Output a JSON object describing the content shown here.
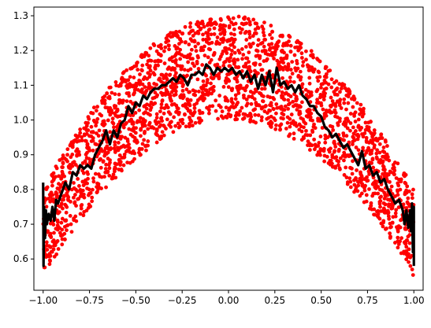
{
  "chart_data": {
    "type": "scatter",
    "title": "",
    "xlabel": "",
    "ylabel": "",
    "xlim": [
      -1.05,
      1.05
    ],
    "ylim": [
      0.51,
      1.325
    ],
    "grid": false,
    "x_ticks": [
      -1.0,
      -0.75,
      -0.5,
      -0.25,
      0.0,
      0.25,
      0.5,
      0.75,
      1.0
    ],
    "x_tick_labels": [
      "−1.00",
      "−0.75",
      "−0.50",
      "−0.25",
      "0.00",
      "0.25",
      "0.50",
      "0.75",
      "1.00"
    ],
    "y_ticks": [
      0.6,
      0.7,
      0.8,
      0.9,
      1.0,
      1.1,
      1.2,
      1.3
    ],
    "y_tick_labels": [
      "0.6",
      "0.7",
      "0.8",
      "0.9",
      "1.0",
      "1.1",
      "1.2",
      "1.3"
    ],
    "series": [
      {
        "kind": "scatter",
        "color": "#ff0000",
        "marker": "circle",
        "description_of_distribution": "noisy points between lower envelope 0.55+0.45*(1-x^2) and upper envelope 0.80+0.50*(1-x^2) over x in [-1,1]",
        "lower_curve": {
          "a": 0.55,
          "b": 0.45
        },
        "upper_curve": {
          "a": 0.8,
          "b": 0.5
        },
        "count": 2400
      },
      {
        "kind": "line",
        "color": "#000000",
        "points": [
          [
            -1.0,
            0.82
          ],
          [
            -0.998,
            0.58
          ],
          [
            -0.995,
            0.75
          ],
          [
            -0.99,
            0.66
          ],
          [
            -0.985,
            0.74
          ],
          [
            -0.98,
            0.7
          ],
          [
            -0.97,
            0.73
          ],
          [
            -0.96,
            0.71
          ],
          [
            -0.95,
            0.75
          ],
          [
            -0.94,
            0.71
          ],
          [
            -0.93,
            0.77
          ],
          [
            -0.92,
            0.76
          ],
          [
            -0.9,
            0.79
          ],
          [
            -0.88,
            0.82
          ],
          [
            -0.86,
            0.8
          ],
          [
            -0.84,
            0.85
          ],
          [
            -0.82,
            0.84
          ],
          [
            -0.8,
            0.87
          ],
          [
            -0.78,
            0.86
          ],
          [
            -0.76,
            0.87
          ],
          [
            -0.74,
            0.86
          ],
          [
            -0.72,
            0.9
          ],
          [
            -0.7,
            0.92
          ],
          [
            -0.68,
            0.94
          ],
          [
            -0.66,
            0.97
          ],
          [
            -0.64,
            0.93
          ],
          [
            -0.62,
            0.97
          ],
          [
            -0.6,
            0.95
          ],
          [
            -0.58,
            0.99
          ],
          [
            -0.56,
            1.0
          ],
          [
            -0.54,
            1.04
          ],
          [
            -0.52,
            1.02
          ],
          [
            -0.5,
            1.05
          ],
          [
            -0.48,
            1.04
          ],
          [
            -0.46,
            1.07
          ],
          [
            -0.44,
            1.06
          ],
          [
            -0.42,
            1.08
          ],
          [
            -0.4,
            1.09
          ],
          [
            -0.38,
            1.09
          ],
          [
            -0.36,
            1.1
          ],
          [
            -0.34,
            1.1
          ],
          [
            -0.32,
            1.11
          ],
          [
            -0.3,
            1.12
          ],
          [
            -0.28,
            1.11
          ],
          [
            -0.26,
            1.13
          ],
          [
            -0.24,
            1.12
          ],
          [
            -0.22,
            1.1
          ],
          [
            -0.2,
            1.13
          ],
          [
            -0.18,
            1.13
          ],
          [
            -0.16,
            1.14
          ],
          [
            -0.14,
            1.13
          ],
          [
            -0.12,
            1.16
          ],
          [
            -0.1,
            1.15
          ],
          [
            -0.08,
            1.13
          ],
          [
            -0.06,
            1.15
          ],
          [
            -0.04,
            1.14
          ],
          [
            -0.02,
            1.15
          ],
          [
            0.0,
            1.14
          ],
          [
            0.02,
            1.15
          ],
          [
            0.04,
            1.13
          ],
          [
            0.06,
            1.14
          ],
          [
            0.08,
            1.12
          ],
          [
            0.1,
            1.14
          ],
          [
            0.12,
            1.11
          ],
          [
            0.14,
            1.13
          ],
          [
            0.16,
            1.09
          ],
          [
            0.18,
            1.13
          ],
          [
            0.2,
            1.1
          ],
          [
            0.22,
            1.14
          ],
          [
            0.24,
            1.08
          ],
          [
            0.26,
            1.15
          ],
          [
            0.28,
            1.1
          ],
          [
            0.3,
            1.11
          ],
          [
            0.32,
            1.09
          ],
          [
            0.34,
            1.1
          ],
          [
            0.36,
            1.08
          ],
          [
            0.38,
            1.1
          ],
          [
            0.4,
            1.07
          ],
          [
            0.42,
            1.06
          ],
          [
            0.44,
            1.04
          ],
          [
            0.46,
            1.04
          ],
          [
            0.48,
            1.02
          ],
          [
            0.5,
            1.01
          ],
          [
            0.52,
            0.98
          ],
          [
            0.54,
            0.97
          ],
          [
            0.56,
            0.95
          ],
          [
            0.58,
            0.96
          ],
          [
            0.6,
            0.94
          ],
          [
            0.62,
            0.92
          ],
          [
            0.64,
            0.93
          ],
          [
            0.66,
            0.91
          ],
          [
            0.68,
            0.89
          ],
          [
            0.7,
            0.87
          ],
          [
            0.72,
            0.91
          ],
          [
            0.74,
            0.86
          ],
          [
            0.76,
            0.87
          ],
          [
            0.78,
            0.84
          ],
          [
            0.8,
            0.85
          ],
          [
            0.82,
            0.82
          ],
          [
            0.84,
            0.83
          ],
          [
            0.86,
            0.8
          ],
          [
            0.88,
            0.78
          ],
          [
            0.9,
            0.76
          ],
          [
            0.92,
            0.77
          ],
          [
            0.94,
            0.74
          ],
          [
            0.95,
            0.7
          ],
          [
            0.96,
            0.74
          ],
          [
            0.97,
            0.69
          ],
          [
            0.98,
            0.74
          ],
          [
            0.985,
            0.68
          ],
          [
            0.99,
            0.76
          ],
          [
            0.995,
            0.62
          ],
          [
            1.0,
            0.75
          ],
          [
            1.0,
            0.58
          ]
        ]
      }
    ]
  }
}
